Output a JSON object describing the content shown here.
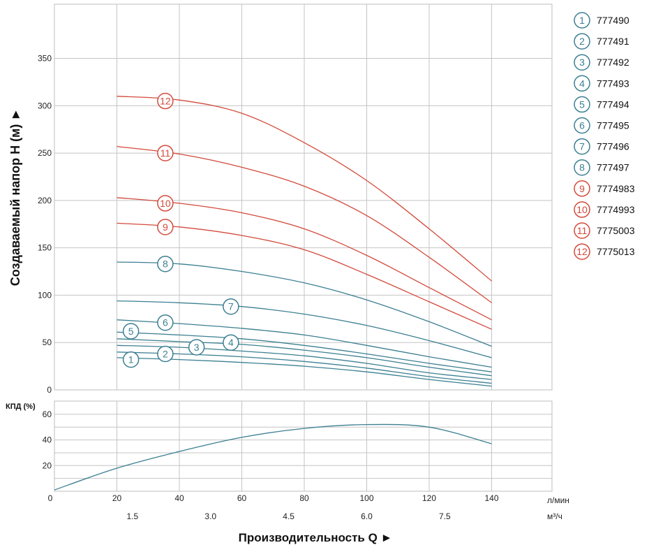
{
  "chart_data": [
    {
      "type": "line",
      "title": "",
      "ylabel": "Создаваемый напор H (м) ►",
      "ylim": [
        0,
        390
      ],
      "yticks": [
        0,
        50,
        100,
        150,
        200,
        250,
        300,
        350
      ],
      "x": [
        20,
        40,
        60,
        80,
        100,
        120,
        140
      ],
      "x_unit": "л/мин",
      "grid": true,
      "legend_placement": "right",
      "series": [
        {
          "name": "777490",
          "badge": "1",
          "values": [
            34,
            32,
            29,
            25,
            19,
            11,
            4
          ],
          "color": "#3c7f92"
        },
        {
          "name": "777491",
          "badge": "2",
          "values": [
            40,
            38,
            35,
            30,
            23,
            14,
            7
          ],
          "color": "#3c7f92"
        },
        {
          "name": "777492",
          "badge": "3",
          "values": [
            47,
            45,
            41,
            36,
            28,
            18,
            11
          ],
          "color": "#3c7f92"
        },
        {
          "name": "777493",
          "badge": "4",
          "values": [
            54,
            51,
            48,
            42,
            34,
            24,
            15
          ],
          "color": "#3c7f92"
        },
        {
          "name": "777494",
          "badge": "5",
          "values": [
            61,
            58,
            54,
            47,
            38,
            28,
            19
          ],
          "color": "#3c7f92"
        },
        {
          "name": "777495",
          "badge": "6",
          "values": [
            74,
            70,
            65,
            58,
            47,
            35,
            24
          ],
          "color": "#3c7f92"
        },
        {
          "name": "777496",
          "badge": "7",
          "values": [
            94,
            92,
            88,
            80,
            68,
            52,
            34
          ],
          "color": "#3c7f92"
        },
        {
          "name": "777497",
          "badge": "8",
          "values": [
            135,
            133,
            125,
            113,
            95,
            72,
            46
          ],
          "color": "#3c7f92"
        },
        {
          "name": "7774983",
          "badge": "9",
          "values": [
            176,
            172,
            163,
            148,
            122,
            93,
            64
          ],
          "color": "#d24a3c"
        },
        {
          "name": "7774993",
          "badge": "10",
          "values": [
            203,
            197,
            187,
            170,
            142,
            108,
            74
          ],
          "color": "#d24a3c"
        },
        {
          "name": "7775003",
          "badge": "11",
          "values": [
            257,
            249,
            235,
            215,
            184,
            140,
            92
          ],
          "color": "#d24a3c"
        },
        {
          "name": "7775013",
          "badge": "12",
          "values": [
            310,
            306,
            292,
            261,
            221,
            170,
            115
          ],
          "color": "#d24a3c"
        }
      ],
      "badges": [
        {
          "text": "1",
          "x": 24.5,
          "y": 32,
          "color": "#3c7f92"
        },
        {
          "text": "2",
          "x": 35.5,
          "y": 38,
          "color": "#3c7f92"
        },
        {
          "text": "3",
          "x": 45.5,
          "y": 45,
          "color": "#3c7f92"
        },
        {
          "text": "4",
          "x": 56.5,
          "y": 50,
          "color": "#3c7f92"
        },
        {
          "text": "5",
          "x": 24.5,
          "y": 62,
          "color": "#3c7f92"
        },
        {
          "text": "6",
          "x": 35.5,
          "y": 71,
          "color": "#3c7f92"
        },
        {
          "text": "7",
          "x": 56.5,
          "y": 88,
          "color": "#3c7f92"
        },
        {
          "text": "8",
          "x": 35.5,
          "y": 133,
          "color": "#3c7f92"
        },
        {
          "text": "9",
          "x": 35.5,
          "y": 172,
          "color": "#d24a3c"
        },
        {
          "text": "10",
          "x": 35.5,
          "y": 197,
          "color": "#d24a3c"
        },
        {
          "text": "11",
          "x": 35.5,
          "y": 250,
          "color": "#d24a3c"
        },
        {
          "text": "12",
          "x": 35.5,
          "y": 305,
          "color": "#d24a3c"
        }
      ]
    },
    {
      "type": "line",
      "title": "",
      "ylabel": "КПД (%)",
      "ylim": [
        0,
        70
      ],
      "yticks": [
        20,
        40,
        60
      ],
      "grid": true,
      "series": [
        {
          "name": "",
          "x": [
            0,
            20,
            40,
            60,
            80,
            100,
            120,
            140
          ],
          "values": [
            1,
            18,
            31,
            42,
            49,
            52,
            50,
            37
          ],
          "color": "#3c7f92"
        }
      ]
    }
  ],
  "x_axis": {
    "lpm_ticks": [
      "0",
      "20",
      "40",
      "60",
      "80",
      "100",
      "120",
      "140"
    ],
    "lpm_unit": "л/мин",
    "m3h_ticks": [
      "1.5",
      "3.0",
      "4.5",
      "6.0",
      "7.5"
    ],
    "m3h_unit": "м³/ч",
    "title": "Производительность Q ►"
  }
}
